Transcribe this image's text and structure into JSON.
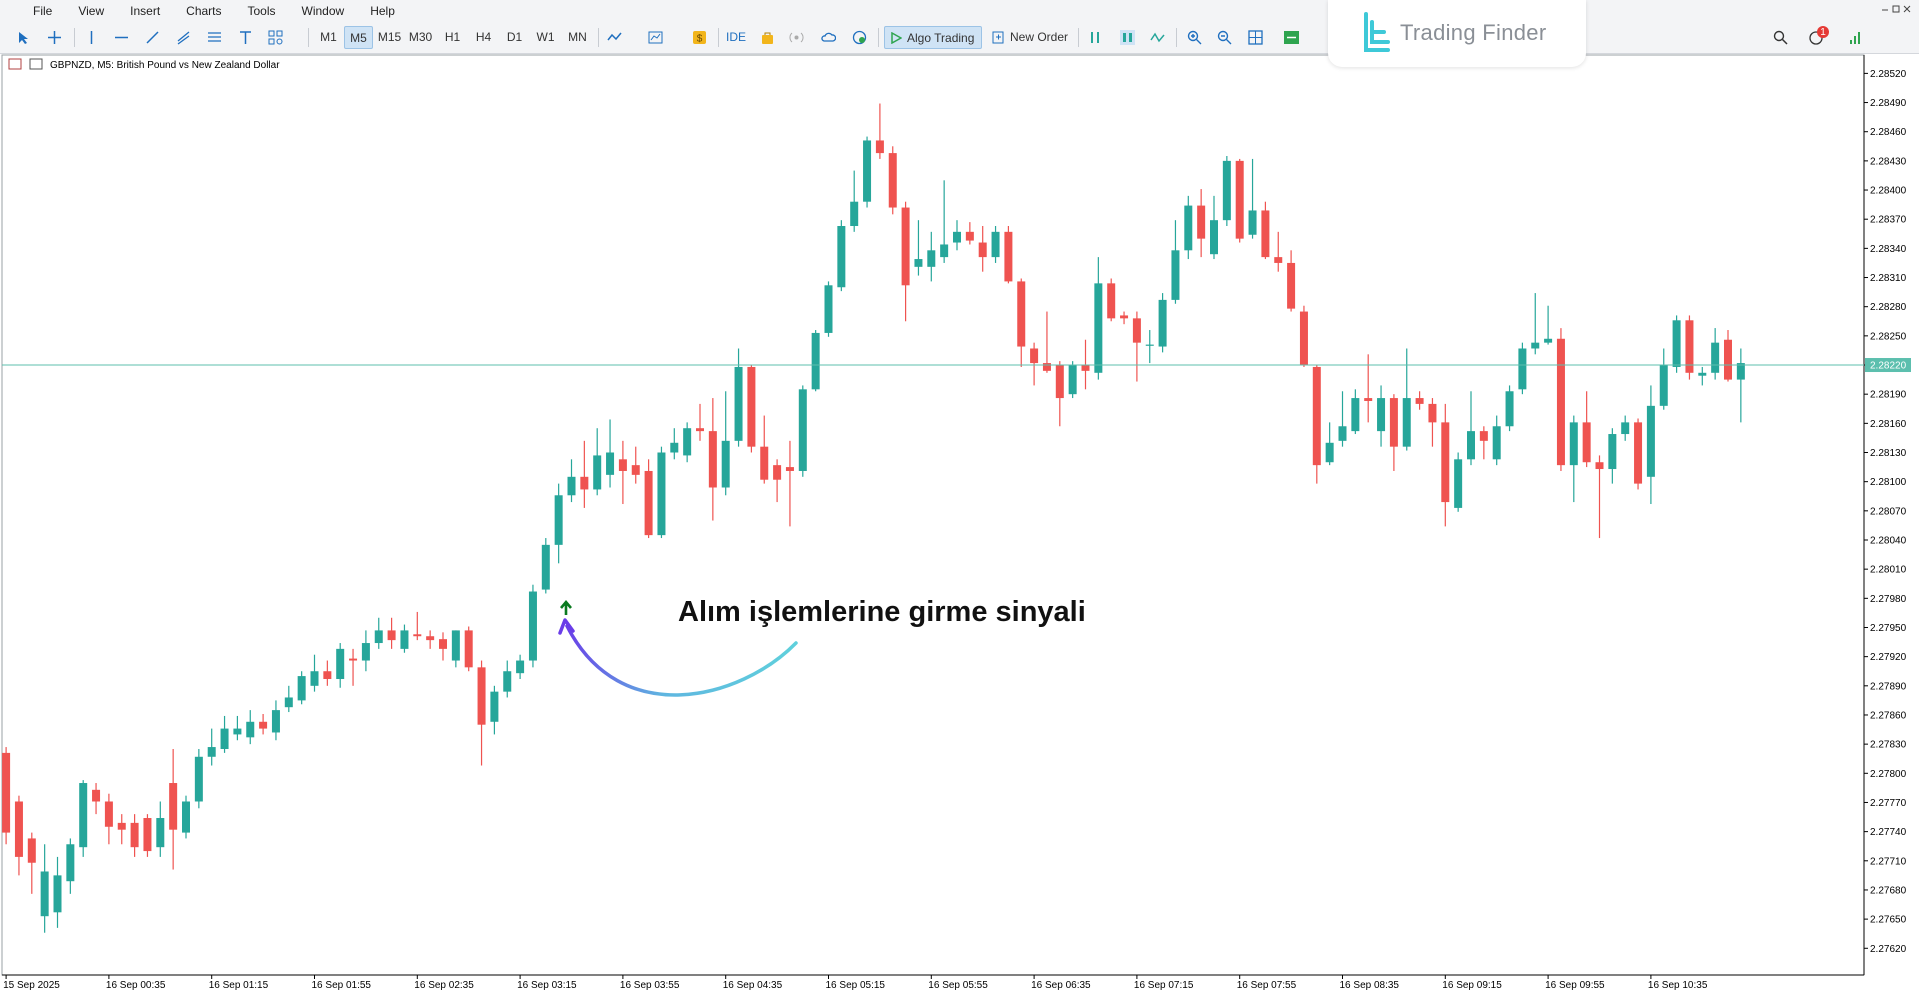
{
  "menu": [
    "File",
    "View",
    "Insert",
    "Charts",
    "Tools",
    "Window",
    "Help"
  ],
  "toolbar": {
    "timeframes": [
      "M1",
      "M5",
      "M15",
      "M30",
      "H1",
      "H4",
      "D1",
      "W1",
      "MN"
    ],
    "ide": "IDE",
    "algo_trading": "Algo Trading",
    "new_order": "New Order",
    "notifications": "1"
  },
  "watermark": "Trading Finder",
  "chart_data": {
    "type": "candlestick",
    "title": "GBPNZD, M5:  British Pound vs New Zealand Dollar",
    "annotation": "Alım işlemlerine girme sinyali",
    "up_color": "#26a69a",
    "down_color": "#ef5350",
    "grid": false,
    "categories": [
      "15 Sep 2025",
      null,
      null,
      null,
      null,
      null,
      null,
      null,
      "16 Sep 00:35",
      null,
      null,
      null,
      null,
      null,
      null,
      null,
      "16 Sep 01:15",
      null,
      null,
      null,
      null,
      null,
      null,
      null,
      "16 Sep 01:55",
      null,
      null,
      null,
      null,
      null,
      null,
      null,
      "16 Sep 02:35",
      null,
      null,
      null,
      null,
      null,
      null,
      null,
      "16 Sep 03:15",
      null,
      null,
      null,
      null,
      null,
      null,
      null,
      "16 Sep 03:55",
      null,
      null,
      null,
      null,
      null,
      null,
      null,
      "16 Sep 04:35",
      null,
      null,
      null,
      null,
      null,
      null,
      null,
      "16 Sep 05:15",
      null,
      null,
      null,
      null,
      null,
      null,
      null,
      "16 Sep 05:55",
      null,
      null,
      null,
      null,
      null,
      null,
      null,
      "16 Sep 06:35",
      null,
      null,
      null,
      null,
      null,
      null,
      null,
      "16 Sep 07:15",
      null,
      null,
      null,
      null,
      null,
      null,
      null,
      "16 Sep 07:55",
      null,
      null,
      null,
      null,
      null,
      null,
      null,
      "16 Sep 08:35",
      null,
      null,
      null,
      null,
      null,
      null,
      null,
      "16 Sep 09:15",
      null,
      null,
      null,
      null,
      null,
      null,
      null,
      "16 Sep 09:55",
      null,
      null,
      null,
      null,
      null,
      null,
      null,
      "16 Sep 10:35",
      null,
      null,
      null,
      null,
      null,
      null,
      null
    ],
    "open": [
      2.27821,
      2.27771,
      2.27733,
      2.27653,
      2.27657,
      2.27689,
      2.27724,
      2.27783,
      2.27771,
      2.27749,
      2.27749,
      2.27754,
      2.27724,
      2.2779,
      2.27739,
      2.27771,
      2.27817,
      2.27825,
      2.2784,
      2.27837,
      2.27853,
      2.27842,
      2.27868,
      2.27875,
      2.2789,
      2.27905,
      2.27897,
      2.27918,
      2.27916,
      2.27934,
      2.27947,
      2.27928,
      2.27943,
      2.27941,
      2.27938,
      2.27916,
      2.27947,
      2.27909,
      2.27853,
      2.27884,
      2.27903,
      2.27916,
      2.27989,
      2.28035,
      2.28086,
      2.28105,
      2.28092,
      2.28107,
      2.28123,
      2.28117,
      2.28111,
      2.28045,
      2.2813,
      2.28127,
      2.28155,
      2.28152,
      2.28094,
      2.28142,
      2.28218,
      2.28136,
      2.28117,
      2.28115,
      2.28111,
      2.28195,
      2.28253,
      2.283,
      2.28363,
      2.28388,
      2.28451,
      2.28438,
      2.28382,
      2.28321,
      2.28321,
      2.28331,
      2.28346,
      2.28357,
      2.28346,
      2.28331,
      2.28357,
      2.28306,
      2.28237,
      2.28222,
      2.2822,
      2.2819,
      2.2822,
      2.28212,
      2.28304,
      2.28271,
      2.28268,
      2.28241,
      2.28239,
      2.28287,
      2.28338,
      2.28384,
      2.28334,
      2.28369,
      2.2843,
      2.28354,
      2.28379,
      2.28331,
      2.28325,
      2.28275,
      2.28218,
      2.2812,
      2.28142,
      2.28152,
      2.28186,
      2.28152,
      2.28186,
      2.28136,
      2.28186,
      2.2818,
      2.28161,
      2.28073,
      2.28123,
      2.28152,
      2.28123,
      2.28157,
      2.28195,
      2.28237,
      2.28243,
      2.28247,
      2.28117,
      2.28161,
      2.2812,
      2.28113,
      2.28149,
      2.28161,
      2.28105,
      2.28178,
      2.28218,
      2.28266,
      2.28209,
      2.28212,
      2.28246,
      2.28205
    ],
    "high": [
      2.27827,
      2.27777,
      2.27739,
      2.27727,
      2.27714,
      2.27733,
      2.27793,
      2.2779,
      2.27779,
      2.27758,
      2.27758,
      2.27758,
      2.27771,
      2.27825,
      2.27777,
      2.27825,
      2.27846,
      2.27859,
      2.27859,
      2.27865,
      2.27861,
      2.27875,
      2.2789,
      2.27905,
      2.27922,
      2.27916,
      2.27934,
      2.27928,
      2.27947,
      2.2796,
      2.2796,
      2.27953,
      2.27966,
      2.27947,
      2.27945,
      2.27947,
      2.27951,
      2.27916,
      2.2789,
      2.27916,
      2.27922,
      2.27994,
      2.28042,
      2.28098,
      2.28123,
      2.28142,
      2.28155,
      2.28164,
      2.28142,
      2.28136,
      2.28123,
      2.28136,
      2.28155,
      2.28161,
      2.2818,
      2.28186,
      2.28193,
      2.28237,
      2.2822,
      2.28168,
      2.28123,
      2.28142,
      2.28199,
      2.28256,
      2.28306,
      2.28369,
      2.2842,
      2.28455,
      2.28489,
      2.28445,
      2.28388,
      2.28369,
      2.28357,
      2.2841,
      2.28369,
      2.28367,
      2.28363,
      2.28363,
      2.28363,
      2.28309,
      2.28243,
      2.28275,
      2.28224,
      2.28224,
      2.28246,
      2.28331,
      2.28309,
      2.28275,
      2.28275,
      2.28256,
      2.28294,
      2.28369,
      2.28394,
      2.28401,
      2.28394,
      2.28435,
      2.28432,
      2.28432,
      2.28388,
      2.28357,
      2.28338,
      2.28281,
      2.2822,
      2.28161,
      2.28193,
      2.28195,
      2.28231,
      2.28199,
      2.2819,
      2.28237,
      2.28193,
      2.28186,
      2.2818,
      2.2813,
      2.28193,
      2.28157,
      2.28168,
      2.28199,
      2.28243,
      2.28294,
      2.28281,
      2.28258,
      2.28168,
      2.28193,
      2.28127,
      2.28155,
      2.28168,
      2.28165,
      2.28199,
      2.28237,
      2.28271,
      2.28271,
      2.28218,
      2.28258,
      2.28256,
      2.28237
    ],
    "low": [
      2.27727,
      2.27695,
      2.27676,
      2.27636,
      2.27641,
      2.27676,
      2.27714,
      2.27758,
      2.27727,
      2.27727,
      2.27714,
      2.27714,
      2.27714,
      2.27701,
      2.27733,
      2.27764,
      2.27808,
      2.27821,
      2.27834,
      2.2783,
      2.2784,
      2.27834,
      2.27863,
      2.27871,
      2.27884,
      2.2789,
      2.27888,
      2.2789,
      2.27905,
      2.27928,
      2.27928,
      2.27924,
      2.27937,
      2.27928,
      2.27916,
      2.27909,
      2.27905,
      2.27808,
      2.2784,
      2.27878,
      2.27897,
      2.27909,
      2.27985,
      2.28016,
      2.28079,
      2.28073,
      2.28086,
      2.28094,
      2.28077,
      2.28098,
      2.28042,
      2.28042,
      2.28123,
      2.2812,
      2.28142,
      2.2806,
      2.28086,
      2.28136,
      2.2813,
      2.28098,
      2.28079,
      2.28054,
      2.28105,
      2.28193,
      2.28249,
      2.28296,
      2.28357,
      2.28382,
      2.28432,
      2.28375,
      2.28265,
      2.28312,
      2.28306,
      2.28325,
      2.28338,
      2.28344,
      2.28316,
      2.28325,
      2.28304,
      2.28218,
      2.28199,
      2.28212,
      2.28157,
      2.28186,
      2.28195,
      2.28205,
      2.28265,
      2.28262,
      2.28203,
      2.28222,
      2.28233,
      2.28283,
      2.28329,
      2.28331,
      2.28329,
      2.28363,
      2.28346,
      2.2835,
      2.28329,
      2.28316,
      2.28275,
      2.28218,
      2.28098,
      2.28117,
      2.28136,
      2.28149,
      2.28161,
      2.28136,
      2.28111,
      2.28132,
      2.28174,
      2.28136,
      2.28054,
      2.28069,
      2.28117,
      2.28123,
      2.28117,
      2.28152,
      2.2819,
      2.28231,
      2.28241,
      2.28111,
      2.28079,
      2.28115,
      2.28042,
      2.28098,
      2.28142,
      2.28092,
      2.28077,
      2.28174,
      2.28212,
      2.28205,
      2.28199,
      2.28205,
      2.28203,
      2.28161
    ],
    "close": [
      2.27739,
      2.27714,
      2.27708,
      2.27699,
      2.27695,
      2.27727,
      2.2779,
      2.27771,
      2.27745,
      2.27742,
      2.27724,
      2.2772,
      2.27754,
      2.27742,
      2.27771,
      2.27817,
      2.27827,
      2.27846,
      2.27846,
      2.27853,
      2.27846,
      2.27865,
      2.27878,
      2.279,
      2.27905,
      2.27897,
      2.27928,
      2.27916,
      2.27934,
      2.27947,
      2.27937,
      2.27947,
      2.27941,
      2.27937,
      2.27928,
      2.27947,
      2.27909,
      2.2785,
      2.27884,
      2.27905,
      2.27916,
      2.27987,
      2.28035,
      2.28086,
      2.28105,
      2.28092,
      2.28127,
      2.2813,
      2.28111,
      2.28107,
      2.28045,
      2.2813,
      2.2814,
      2.28155,
      2.28152,
      2.28094,
      2.28142,
      2.28218,
      2.28136,
      2.28102,
      2.28102,
      2.28111,
      2.28195,
      2.28253,
      2.28302,
      2.28363,
      2.28388,
      2.28451,
      2.28438,
      2.28382,
      2.28302,
      2.28329,
      2.28338,
      2.28344,
      2.28357,
      2.28348,
      2.28331,
      2.28357,
      2.28306,
      2.28239,
      2.28222,
      2.28214,
      2.28186,
      2.2822,
      2.28214,
      2.28304,
      2.28268,
      2.28268,
      2.28243,
      2.28241,
      2.28287,
      2.28338,
      2.28384,
      2.2835,
      2.28369,
      2.2843,
      2.2835,
      2.28379,
      2.28331,
      2.28325,
      2.28278,
      2.2822,
      2.28117,
      2.2814,
      2.28157,
      2.28186,
      2.28183,
      2.28186,
      2.28136,
      2.28186,
      2.2818,
      2.28161,
      2.28079,
      2.28123,
      2.28152,
      2.28142,
      2.28157,
      2.28193,
      2.28237,
      2.28243,
      2.28247,
      2.28117,
      2.28161,
      2.2812,
      2.28113,
      2.28149,
      2.28161,
      2.28098,
      2.28178,
      2.2822,
      2.28266,
      2.28212,
      2.28212,
      2.28243,
      2.28205,
      2.28222
    ],
    "ylim": [
      2.27592,
      2.28535
    ],
    "yticks": [
      {
        "value": 2.2852,
        "label": "2.28520"
      },
      {
        "value": 2.2849,
        "label": "2.28490"
      },
      {
        "value": 2.2846,
        "label": "2.28460"
      },
      {
        "value": 2.2843,
        "label": "2.28430"
      },
      {
        "value": 2.284,
        "label": "2.28400"
      },
      {
        "value": 2.2837,
        "label": "2.28370"
      },
      {
        "value": 2.2834,
        "label": "2.28340"
      },
      {
        "value": 2.2831,
        "label": "2.28310"
      },
      {
        "value": 2.2828,
        "label": "2.28280"
      },
      {
        "value": 2.2825,
        "label": "2.28250"
      },
      {
        "value": 2.2822,
        "label": "2.28220"
      },
      {
        "value": 2.2819,
        "label": "2.28190"
      },
      {
        "value": 2.2816,
        "label": "2.28160"
      },
      {
        "value": 2.2813,
        "label": "2.28130"
      },
      {
        "value": 2.281,
        "label": "2.28100"
      },
      {
        "value": 2.2807,
        "label": "2.28070"
      },
      {
        "value": 2.2804,
        "label": "2.28040"
      },
      {
        "value": 2.2801,
        "label": "2.28010"
      },
      {
        "value": 2.2798,
        "label": "2.27980"
      },
      {
        "value": 2.2795,
        "label": "2.27950"
      },
      {
        "value": 2.2792,
        "label": "2.27920"
      },
      {
        "value": 2.2789,
        "label": "2.27890"
      },
      {
        "value": 2.2786,
        "label": "2.27860"
      },
      {
        "value": 2.2783,
        "label": "2.27830"
      },
      {
        "value": 2.278,
        "label": "2.27800"
      },
      {
        "value": 2.2777,
        "label": "2.27770"
      },
      {
        "value": 2.2774,
        "label": "2.27740"
      },
      {
        "value": 2.2771,
        "label": "2.27710"
      },
      {
        "value": 2.2768,
        "label": "2.27680"
      },
      {
        "value": 2.2765,
        "label": "2.27650"
      },
      {
        "value": 2.2762,
        "label": "2.27620"
      }
    ],
    "bid_line": {
      "value": 2.2822,
      "label": "2.28220",
      "color": "#5cbfae"
    }
  }
}
